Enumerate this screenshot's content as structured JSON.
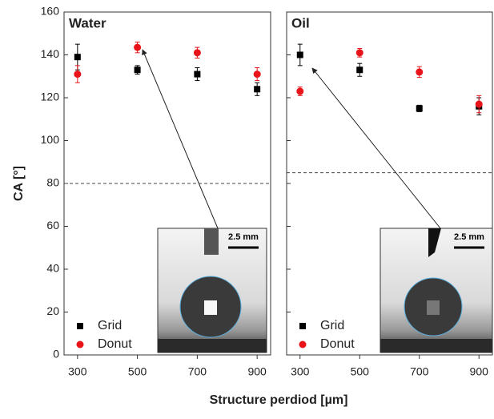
{
  "chart_data": [
    {
      "type": "scatter",
      "title": "Water",
      "y_label": "CA [°]",
      "x_label": "Structure perdiod [µm]",
      "xlim": [
        255,
        945
      ],
      "ylim": [
        0,
        160
      ],
      "xticks": [
        300,
        500,
        700,
        900
      ],
      "yticks": [
        0,
        20,
        40,
        60,
        80,
        100,
        120,
        140,
        160
      ],
      "threshold": 80,
      "inset_label": "2.5 mm",
      "legend": "lower left",
      "series": [
        {
          "name": "Grid",
          "color": "#000000",
          "marker": "square",
          "x": [
            300,
            500,
            700,
            900
          ],
          "values": [
            139,
            133,
            131,
            124
          ],
          "errors": [
            6,
            2,
            3,
            3
          ]
        },
        {
          "name": "Donut",
          "color": "#e8141a",
          "marker": "circle",
          "x": [
            300,
            500,
            700,
            900
          ],
          "values": [
            131,
            143.5,
            141,
            131
          ],
          "errors": [
            4,
            2.5,
            2.5,
            3
          ]
        }
      ]
    },
    {
      "type": "scatter",
      "title": "Oil",
      "xlim": [
        255,
        945
      ],
      "ylim": [
        0,
        160
      ],
      "xticks": [
        300,
        500,
        700,
        900
      ],
      "threshold": 85,
      "inset_label": "2.5 mm",
      "legend": "lower left",
      "series": [
        {
          "name": "Grid",
          "color": "#000000",
          "marker": "square",
          "x": [
            300,
            500,
            700,
            900
          ],
          "values": [
            140,
            133,
            115,
            116
          ],
          "errors": [
            5,
            3,
            1.5,
            4
          ]
        },
        {
          "name": "Donut",
          "color": "#e8141a",
          "marker": "circle",
          "x": [
            300,
            500,
            700,
            900
          ],
          "values": [
            123,
            141,
            132,
            117
          ],
          "errors": [
            2,
            2,
            2.5,
            4
          ]
        }
      ]
    }
  ]
}
